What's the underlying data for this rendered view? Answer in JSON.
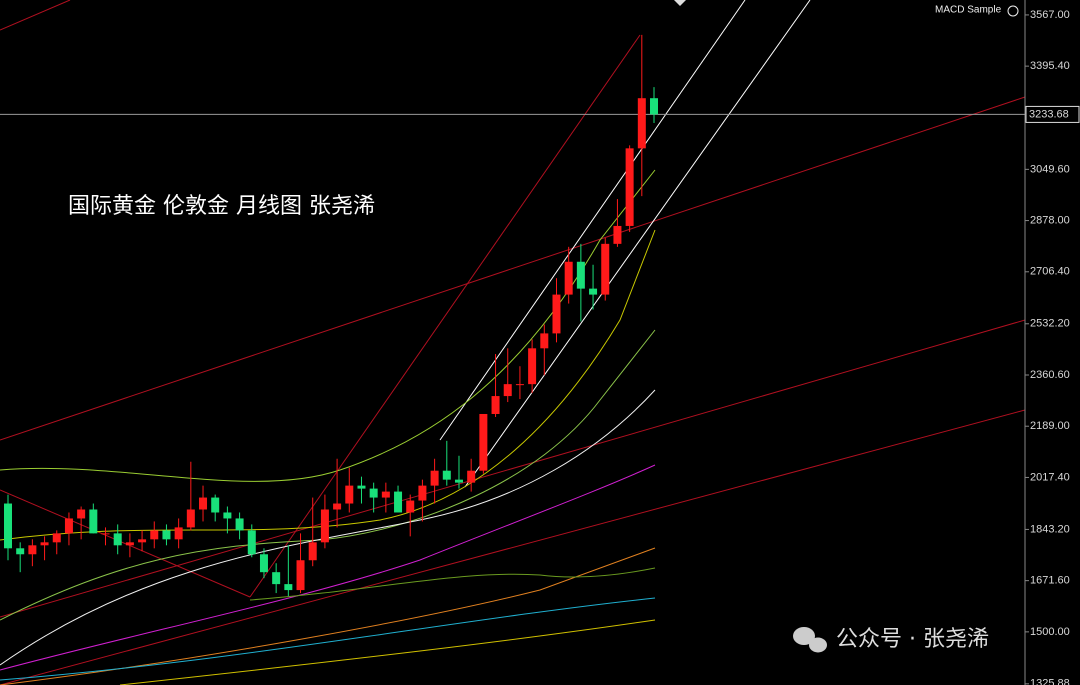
{
  "chart_data": {
    "type": "candlestick",
    "title": "国际黄金 伦敦金 月线图 张尧浠",
    "indicator_label": "MACD Sample",
    "watermark": "公众号 · 张尧浠",
    "up_color": "#ff1a1a",
    "down_color": "#19e07a",
    "open": [
      1930,
      1780,
      1760,
      1790,
      1800,
      1830,
      1880,
      1910,
      1830,
      1830,
      1790,
      1800,
      1810,
      1840,
      1810,
      1850,
      1910,
      1950,
      1900,
      1880,
      1840,
      1760,
      1700,
      1660,
      1640,
      1740,
      1800,
      1910,
      1930,
      1990,
      1980,
      1950,
      1970,
      1900,
      1940,
      1990,
      2040,
      2010,
      2000,
      2040,
      2230,
      2290,
      2330,
      2330,
      2450,
      2500,
      2630,
      2740,
      2650,
      2630,
      2800,
      2860,
      3120,
      3288
    ],
    "high": [
      1960,
      1800,
      1810,
      1820,
      1840,
      1900,
      1920,
      1930,
      1850,
      1860,
      1830,
      1840,
      1870,
      1860,
      1880,
      2070,
      1990,
      1960,
      1920,
      1900,
      1860,
      1780,
      1730,
      1790,
      1830,
      1950,
      1960,
      2080,
      2050,
      2020,
      2000,
      2000,
      1990,
      1960,
      2010,
      2080,
      2140,
      2090,
      2080,
      2230,
      2431,
      2450,
      2390,
      2480,
      2530,
      2685,
      2790,
      2800,
      2730,
      2820,
      2950,
      3130,
      3500,
      3325
    ],
    "low": [
      1740,
      1700,
      1720,
      1740,
      1760,
      1790,
      1810,
      1830,
      1790,
      1760,
      1750,
      1770,
      1780,
      1790,
      1780,
      1840,
      1870,
      1870,
      1830,
      1810,
      1750,
      1680,
      1630,
      1620,
      1630,
      1720,
      1780,
      1850,
      1900,
      1930,
      1900,
      1900,
      1900,
      1820,
      1870,
      1930,
      1990,
      1980,
      1970,
      2030,
      2220,
      2270,
      2280,
      2300,
      2360,
      2470,
      2600,
      2540,
      2580,
      2610,
      2790,
      2840,
      2960,
      3205
    ],
    "close": [
      1780,
      1760,
      1790,
      1800,
      1830,
      1880,
      1910,
      1830,
      1830,
      1790,
      1800,
      1810,
      1840,
      1810,
      1850,
      1910,
      1950,
      1900,
      1880,
      1840,
      1760,
      1700,
      1660,
      1640,
      1740,
      1800,
      1910,
      1930,
      1990,
      1980,
      1950,
      1970,
      1900,
      1940,
      1990,
      2040,
      2010,
      2000,
      2040,
      2230,
      2290,
      2330,
      2330,
      2450,
      2500,
      2630,
      2740,
      2650,
      2630,
      2800,
      2860,
      3120,
      3288,
      3233.68
    ],
    "ylim": [
      1322,
      3617
    ],
    "yticks": [
      {
        "value": 3567,
        "label": "3567.00"
      },
      {
        "value": 3395.4,
        "label": "3395.40"
      },
      {
        "value": 3049.6,
        "label": "3049.60"
      },
      {
        "value": 2878,
        "label": "2878.00"
      },
      {
        "value": 2706.4,
        "label": "2706.40"
      },
      {
        "value": 2532.2,
        "label": "2532.20"
      },
      {
        "value": 2360.6,
        "label": "2360.60"
      },
      {
        "value": 2189,
        "label": "2189.00"
      },
      {
        "value": 2017.4,
        "label": "2017.40"
      },
      {
        "value": 1843.2,
        "label": "1843.20"
      },
      {
        "value": 1671.6,
        "label": "1671.60"
      },
      {
        "value": 1500,
        "label": "1500.00"
      },
      {
        "value": 1325.88,
        "label": "1325.88"
      }
    ],
    "last_price": 3233.68
  }
}
